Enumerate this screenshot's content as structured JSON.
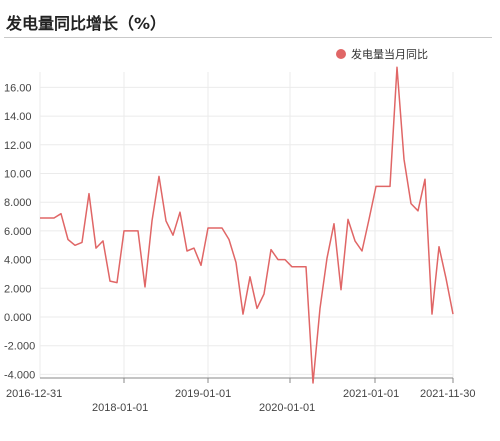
{
  "page": {
    "title": "发电量同比增长（%）"
  },
  "colors": {
    "series": "#e06666",
    "grid": "#ebebeb",
    "axis": "#888888"
  },
  "chart_data": {
    "type": "line",
    "title": "发电量同比增长（%）",
    "legend": "top-right",
    "grid": true,
    "ylim": [
      -4,
      17.8
    ],
    "yticks": [
      "-4.000",
      "-2.000",
      "0.000",
      "2.000",
      "4.000",
      "6.000",
      "8.000",
      "10.00",
      "12.00",
      "14.00",
      "16.00"
    ],
    "xticks_top": [
      "2016-12-31",
      "2019-01-01",
      "2021-01-01",
      "2021-11-30"
    ],
    "xticks_bottom": [
      "2018-01-01",
      "2020-01-01"
    ],
    "series": [
      {
        "name": "发电量当月同比",
        "values": [
          6.9,
          6.9,
          6.9,
          7.2,
          5.4,
          5.0,
          5.2,
          8.6,
          4.8,
          5.3,
          2.5,
          2.4,
          6.0,
          6.0,
          6.0,
          2.1,
          6.7,
          9.8,
          6.7,
          5.7,
          7.3,
          4.6,
          4.8,
          3.6,
          6.2,
          6.2,
          6.2,
          5.4,
          3.8,
          0.2,
          2.8,
          0.6,
          1.6,
          4.7,
          4.0,
          4.0,
          3.5,
          3.5,
          3.5,
          -4.6,
          0.6,
          4.1,
          6.5,
          1.9,
          6.8,
          5.3,
          4.6,
          6.8,
          9.1,
          9.1,
          9.1,
          17.4,
          11.0,
          7.9,
          7.4,
          9.6,
          0.2,
          4.9,
          2.7,
          0.2
        ]
      }
    ]
  }
}
